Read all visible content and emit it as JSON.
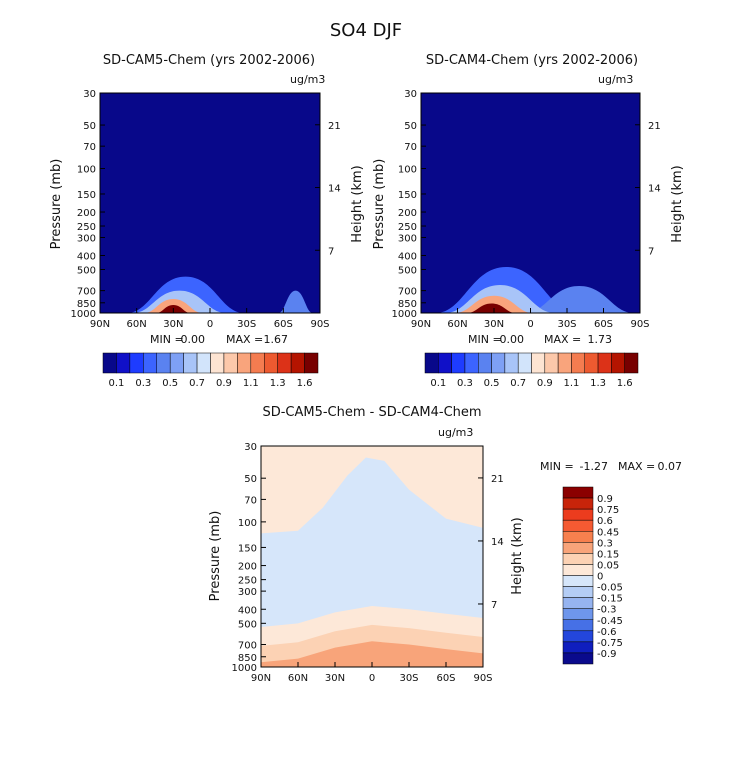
{
  "figure": {
    "title": "SO4 DJF",
    "units": "ug/m3",
    "left_axis_label": "Pressure (mb)",
    "right_axis_label": "Height (km)"
  },
  "chart_data": [
    {
      "type": "heatmap",
      "title": "SD-CAM5-Chem (yrs 2002-2006)",
      "units": "ug/m3",
      "xlabel": "",
      "ylabel": "Pressure (mb)",
      "y2label": "Height (km)",
      "x_ticks": [
        "90N",
        "60N",
        "30N",
        "0",
        "30S",
        "60S",
        "90S"
      ],
      "x_range": [
        90,
        -90
      ],
      "y_ticks": [
        "30",
        "50",
        "70",
        "100",
        "150",
        "200",
        "250",
        "300",
        "400",
        "500",
        "700",
        "850",
        "1000"
      ],
      "y_tick_values": [
        30,
        50,
        70,
        100,
        150,
        200,
        250,
        300,
        400,
        500,
        700,
        850,
        1000
      ],
      "y_range": [
        30,
        1000
      ],
      "y2_ticks": [
        "21",
        "14",
        "7"
      ],
      "y2_tick_values": [
        21,
        14,
        7
      ],
      "stats": {
        "min_label": "MIN =",
        "min": "0.00",
        "max_label": "MAX =",
        "max": "1.67"
      },
      "plume": [
        {
          "lat": 30,
          "top_p": 880,
          "halfwidth": 14,
          "value": 1.6
        },
        {
          "lat": 30,
          "top_p": 800,
          "halfwidth": 24,
          "value": 1.0
        },
        {
          "lat": 25,
          "top_p": 700,
          "halfwidth": 38,
          "value": 0.6
        },
        {
          "lat": 20,
          "top_p": 560,
          "halfwidth": 48,
          "value": 0.3
        },
        {
          "lat": -70,
          "top_p": 700,
          "halfwidth": 14,
          "value": 0.4
        }
      ],
      "colorbar": {
        "orientation": "horizontal",
        "levels": [
          0.1,
          0.2,
          0.3,
          0.4,
          0.5,
          0.6,
          0.7,
          0.8,
          0.9,
          1.0,
          1.1,
          1.2,
          1.3,
          1.4,
          1.6
        ],
        "labels": [
          "0.1",
          "0.3",
          "0.5",
          "0.7",
          "0.9",
          "1.1",
          "1.3",
          "1.6"
        ],
        "colors": [
          "#08088a",
          "#1010c8",
          "#1e3cff",
          "#3c64ff",
          "#5a82f0",
          "#7ea0f5",
          "#a8c4f8",
          "#d2e4fb",
          "#fde4d2",
          "#fcc8aa",
          "#f9a47c",
          "#f47c50",
          "#ed5a30",
          "#dc3218",
          "#b41400",
          "#780000"
        ]
      }
    },
    {
      "type": "heatmap",
      "title": "SD-CAM4-Chem (yrs 2002-2006)",
      "units": "ug/m3",
      "xlabel": "",
      "ylabel": "Pressure (mb)",
      "y2label": "Height (km)",
      "x_ticks": [
        "90N",
        "60N",
        "30N",
        "0",
        "30S",
        "60S",
        "90S"
      ],
      "x_range": [
        90,
        -90
      ],
      "y_ticks": [
        "30",
        "50",
        "70",
        "100",
        "150",
        "200",
        "250",
        "300",
        "400",
        "500",
        "700",
        "850",
        "1000"
      ],
      "y_tick_values": [
        30,
        50,
        70,
        100,
        150,
        200,
        250,
        300,
        400,
        500,
        700,
        850,
        1000
      ],
      "y_range": [
        30,
        1000
      ],
      "y2_ticks": [
        "21",
        "14",
        "7"
      ],
      "y2_tick_values": [
        21,
        14,
        7
      ],
      "stats": {
        "min_label": "MIN =",
        "min": "0.00",
        "max_label": "MAX =",
        "max": "1.73"
      },
      "plume": [
        {
          "lat": 32,
          "top_p": 860,
          "halfwidth": 20,
          "value": 1.6
        },
        {
          "lat": 30,
          "top_p": 760,
          "halfwidth": 32,
          "value": 1.0
        },
        {
          "lat": 25,
          "top_p": 640,
          "halfwidth": 45,
          "value": 0.6
        },
        {
          "lat": 20,
          "top_p": 480,
          "halfwidth": 58,
          "value": 0.3
        },
        {
          "lat": -40,
          "top_p": 650,
          "halfwidth": 45,
          "value": 0.4
        }
      ],
      "colorbar": {
        "orientation": "horizontal",
        "levels": [
          0.1,
          0.2,
          0.3,
          0.4,
          0.5,
          0.6,
          0.7,
          0.8,
          0.9,
          1.0,
          1.1,
          1.2,
          1.3,
          1.4,
          1.6
        ],
        "labels": [
          "0.1",
          "0.3",
          "0.5",
          "0.7",
          "0.9",
          "1.1",
          "1.3",
          "1.6"
        ],
        "colors": [
          "#08088a",
          "#1010c8",
          "#1e3cff",
          "#3c64ff",
          "#5a82f0",
          "#7ea0f5",
          "#a8c4f8",
          "#d2e4fb",
          "#fde4d2",
          "#fcc8aa",
          "#f9a47c",
          "#f47c50",
          "#ed5a30",
          "#dc3218",
          "#b41400",
          "#780000"
        ]
      }
    },
    {
      "type": "heatmap",
      "title": "SD-CAM5-Chem - SD-CAM4-Chem",
      "units": "ug/m3",
      "xlabel": "",
      "ylabel": "Pressure (mb)",
      "y2label": "Height (km)",
      "x_ticks": [
        "90N",
        "60N",
        "30N",
        "0",
        "30S",
        "60S",
        "90S"
      ],
      "x_range": [
        90,
        -90
      ],
      "y_ticks": [
        "30",
        "50",
        "70",
        "100",
        "150",
        "200",
        "250",
        "300",
        "400",
        "500",
        "700",
        "850",
        "1000"
      ],
      "y_tick_values": [
        30,
        50,
        70,
        100,
        150,
        200,
        250,
        300,
        400,
        500,
        700,
        850,
        1000
      ],
      "y_range": [
        30,
        1000
      ],
      "y2_ticks": [
        "21",
        "14",
        "7"
      ],
      "y2_tick_values": [
        21,
        14,
        7
      ],
      "stats": {
        "min_label": "MIN =",
        "min": "-1.27",
        "max_label": "MAX =",
        "max": "0.07"
      },
      "positive_region_top": [
        {
          "lat": 90,
          "p": 120
        },
        {
          "lat": 60,
          "p": 115
        },
        {
          "lat": 40,
          "p": 80
        },
        {
          "lat": 20,
          "p": 48
        },
        {
          "lat": 5,
          "p": 36
        },
        {
          "lat": -10,
          "p": 38
        },
        {
          "lat": -30,
          "p": 60
        },
        {
          "lat": -60,
          "p": 95
        },
        {
          "lat": -90,
          "p": 110
        }
      ],
      "positive_region_bottom": [
        {
          "lat": 90,
          "p": 530
        },
        {
          "lat": 60,
          "p": 500
        },
        {
          "lat": 30,
          "p": 420
        },
        {
          "lat": 0,
          "p": 380
        },
        {
          "lat": -30,
          "p": 400
        },
        {
          "lat": -60,
          "p": 430
        },
        {
          "lat": -90,
          "p": 460
        }
      ],
      "colorbar": {
        "orientation": "vertical",
        "levels": [
          -0.9,
          -0.75,
          -0.6,
          -0.45,
          -0.3,
          -0.15,
          -0.05,
          0,
          0.05,
          0.15,
          0.3,
          0.45,
          0.6,
          0.75,
          0.9
        ],
        "labels": [
          "0.9",
          "0.75",
          "0.6",
          "0.45",
          "0.3",
          "0.15",
          "0.05",
          "0",
          "-0.05",
          "-0.15",
          "-0.3",
          "-0.45",
          "-0.6",
          "-0.75",
          "-0.9"
        ],
        "colors": [
          "#8b0000",
          "#c8240a",
          "#ec3c1e",
          "#f55a32",
          "#f7804e",
          "#f8a47a",
          "#fcd2b4",
          "#fde8d8",
          "#d6e6fa",
          "#b4cdf5",
          "#96b4f0",
          "#6e96ec",
          "#4670e6",
          "#2346dc",
          "#0f1ebe",
          "#0a0a8c"
        ]
      }
    }
  ]
}
